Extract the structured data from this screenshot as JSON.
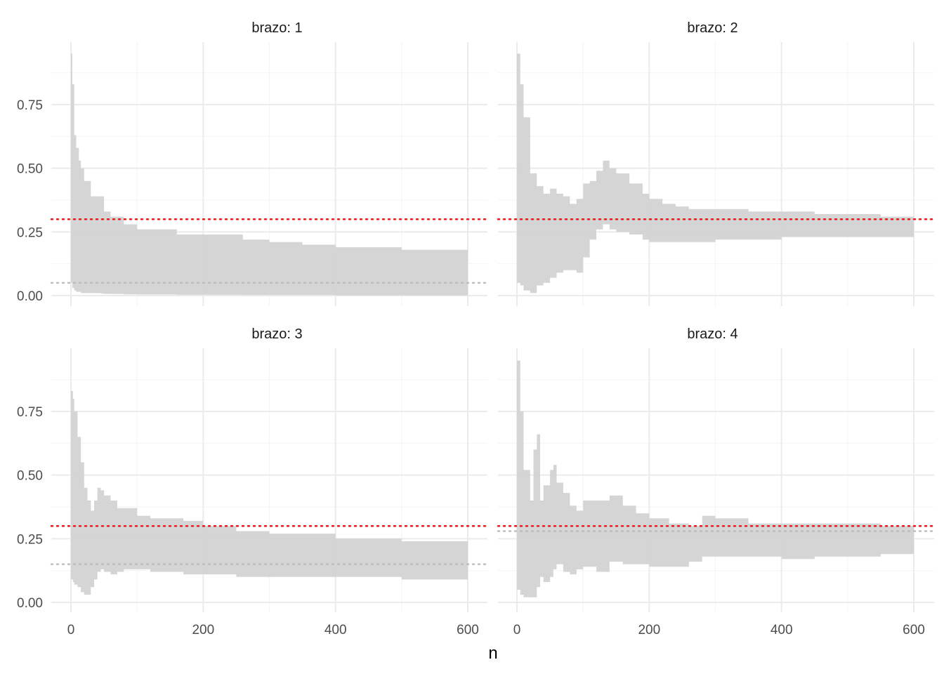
{
  "chart_data": {
    "type": "area",
    "facet_label_prefix": "brazo: ",
    "xlabel": "n",
    "ylabel": "",
    "xlim": [
      0,
      600
    ],
    "ylim": [
      0,
      0.97
    ],
    "x_ticks": [
      0,
      200,
      400,
      600
    ],
    "x_tick_labels": [
      "0",
      "200",
      "400",
      "600"
    ],
    "y_ticks": [
      0,
      0.25,
      0.5,
      0.75
    ],
    "y_tick_labels": [
      "0.00",
      "0.25",
      "0.50",
      "0.75"
    ],
    "grid": true,
    "colors": {
      "band": "#d3d3d3",
      "reference_line": "#e41a1c",
      "true_value_line": "#bdbdbd",
      "grid_major": "#ebebeb",
      "grid_minor": "#f5f5f5"
    },
    "reference_line": 0.3,
    "facets": [
      {
        "brazo": "1",
        "true_value": 0.05,
        "band": {
          "x": [
            0,
            2,
            5,
            8,
            12,
            15,
            20,
            27,
            30,
            45,
            50,
            60,
            80,
            100,
            160,
            200,
            260,
            300,
            350,
            400,
            500,
            600
          ],
          "upper": [
            0.95,
            0.83,
            0.63,
            0.58,
            0.53,
            0.5,
            0.45,
            0.45,
            0.39,
            0.39,
            0.33,
            0.31,
            0.28,
            0.26,
            0.24,
            0.24,
            0.22,
            0.21,
            0.2,
            0.19,
            0.18,
            0.18
          ],
          "lower": [
            0.05,
            0.03,
            0.02,
            0.015,
            0.015,
            0.01,
            0.01,
            0.01,
            0.01,
            0.008,
            0.007,
            0.006,
            0.005,
            0.004,
            0.003,
            0.003,
            0.002,
            0.002,
            0.002,
            0.001,
            0.001,
            0.001
          ]
        }
      },
      {
        "brazo": "2",
        "true_value": 0.3,
        "band": {
          "x": [
            0,
            5,
            10,
            20,
            30,
            40,
            50,
            60,
            70,
            80,
            90,
            100,
            110,
            120,
            130,
            140,
            150,
            170,
            190,
            200,
            220,
            240,
            260,
            280,
            300,
            350,
            400,
            450,
            500,
            550,
            600
          ],
          "upper": [
            0.95,
            0.83,
            0.7,
            0.48,
            0.43,
            0.4,
            0.42,
            0.4,
            0.39,
            0.36,
            0.38,
            0.44,
            0.45,
            0.49,
            0.53,
            0.5,
            0.48,
            0.44,
            0.4,
            0.38,
            0.36,
            0.35,
            0.34,
            0.34,
            0.34,
            0.33,
            0.33,
            0.32,
            0.32,
            0.31,
            0.3
          ],
          "lower": [
            0.05,
            0.04,
            0.02,
            0.01,
            0.04,
            0.05,
            0.07,
            0.09,
            0.1,
            0.1,
            0.09,
            0.15,
            0.22,
            0.26,
            0.28,
            0.26,
            0.25,
            0.24,
            0.22,
            0.21,
            0.21,
            0.21,
            0.21,
            0.21,
            0.22,
            0.22,
            0.23,
            0.23,
            0.23,
            0.23,
            0.23
          ]
        }
      },
      {
        "brazo": "3",
        "true_value": 0.15,
        "band": {
          "x": [
            0,
            3,
            5,
            10,
            15,
            20,
            25,
            30,
            35,
            40,
            45,
            50,
            60,
            70,
            80,
            100,
            120,
            150,
            170,
            200,
            250,
            300,
            350,
            400,
            450,
            500,
            600
          ],
          "upper": [
            0.83,
            0.8,
            0.75,
            0.65,
            0.55,
            0.45,
            0.4,
            0.36,
            0.4,
            0.45,
            0.44,
            0.42,
            0.4,
            0.37,
            0.37,
            0.34,
            0.33,
            0.33,
            0.32,
            0.3,
            0.28,
            0.27,
            0.27,
            0.25,
            0.25,
            0.24,
            0.24
          ],
          "lower": [
            0.09,
            0.08,
            0.07,
            0.06,
            0.04,
            0.03,
            0.03,
            0.06,
            0.09,
            0.12,
            0.13,
            0.12,
            0.11,
            0.12,
            0.13,
            0.13,
            0.12,
            0.12,
            0.11,
            0.11,
            0.1,
            0.1,
            0.1,
            0.1,
            0.1,
            0.09,
            0.09
          ]
        }
      },
      {
        "brazo": "4",
        "true_value": 0.28,
        "band": {
          "x": [
            0,
            5,
            10,
            20,
            25,
            30,
            35,
            40,
            50,
            55,
            60,
            70,
            80,
            90,
            100,
            120,
            140,
            160,
            180,
            200,
            230,
            260,
            280,
            300,
            350,
            400,
            450,
            500,
            550,
            600
          ],
          "upper": [
            0.95,
            0.75,
            0.52,
            0.4,
            0.6,
            0.66,
            0.4,
            0.46,
            0.52,
            0.54,
            0.47,
            0.43,
            0.38,
            0.36,
            0.4,
            0.4,
            0.42,
            0.38,
            0.35,
            0.33,
            0.31,
            0.3,
            0.34,
            0.33,
            0.31,
            0.31,
            0.31,
            0.31,
            0.3,
            0.3
          ],
          "lower": [
            0.05,
            0.03,
            0.02,
            0.02,
            0.02,
            0.06,
            0.1,
            0.08,
            0.1,
            0.13,
            0.15,
            0.12,
            0.11,
            0.13,
            0.14,
            0.12,
            0.16,
            0.15,
            0.15,
            0.14,
            0.14,
            0.16,
            0.18,
            0.18,
            0.18,
            0.17,
            0.18,
            0.18,
            0.19,
            0.2
          ]
        }
      }
    ]
  }
}
